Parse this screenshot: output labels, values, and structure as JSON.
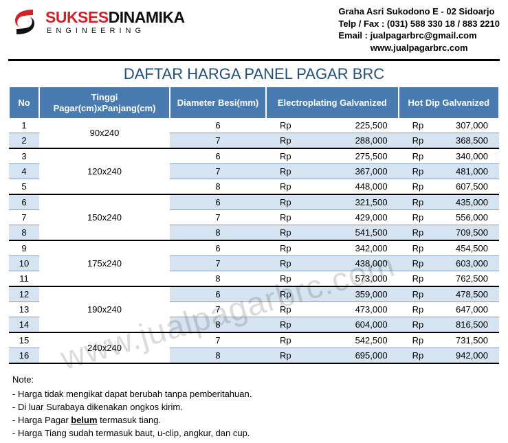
{
  "company": {
    "name_part1": "SUKSES",
    "name_part2": "DINAMIKA",
    "subtitle": "ENGINEERING"
  },
  "contact": {
    "address": "Graha Asri Sukodono E - 02 Sidoarjo",
    "phone": "Telp / Fax : (031) 588 330 18 / 883 2210",
    "email": "Email : jualpagarbrc@gmail.com",
    "web": "www.jualpagarbrc.com"
  },
  "title": "DAFTAR HARGA PANEL PAGAR BRC",
  "columns": {
    "no": "No",
    "size": "Tinggi Pagar(cm)xPanjang(cm)",
    "dia": "Diameter Besi(mm)",
    "electro": "Electroplating Galvanized",
    "hotdip": "Hot Dip Galvanized"
  },
  "currency": "Rp",
  "groups": [
    {
      "size": "90x240",
      "rows": [
        {
          "no": 1,
          "dia": 6,
          "e": "225,500",
          "h": "307,000"
        },
        {
          "no": 2,
          "dia": 7,
          "e": "288,000",
          "h": "368,500"
        }
      ]
    },
    {
      "size": "120x240",
      "rows": [
        {
          "no": 3,
          "dia": 6,
          "e": "275,500",
          "h": "340,000"
        },
        {
          "no": 4,
          "dia": 7,
          "e": "367,000",
          "h": "481,000"
        },
        {
          "no": 5,
          "dia": 8,
          "e": "448,000",
          "h": "607,500"
        }
      ]
    },
    {
      "size": "150x240",
      "rows": [
        {
          "no": 6,
          "dia": 6,
          "e": "321,500",
          "h": "435,000"
        },
        {
          "no": 7,
          "dia": 7,
          "e": "429,000",
          "h": "556,000"
        },
        {
          "no": 8,
          "dia": 8,
          "e": "541,500",
          "h": "709,500"
        }
      ]
    },
    {
      "size": "175x240",
      "rows": [
        {
          "no": 9,
          "dia": 6,
          "e": "342,000",
          "h": "454,500"
        },
        {
          "no": 10,
          "dia": 7,
          "e": "438,000",
          "h": "603,000"
        },
        {
          "no": 11,
          "dia": 8,
          "e": "573,000",
          "h": "762,500"
        }
      ]
    },
    {
      "size": "190x240",
      "rows": [
        {
          "no": 12,
          "dia": 6,
          "e": "359,000",
          "h": "478,500"
        },
        {
          "no": 13,
          "dia": 7,
          "e": "473,000",
          "h": "647,000"
        },
        {
          "no": 14,
          "dia": 8,
          "e": "604,000",
          "h": "816,500"
        }
      ]
    },
    {
      "size": "240x240",
      "rows": [
        {
          "no": 15,
          "dia": 7,
          "e": "542,500",
          "h": "731,500"
        },
        {
          "no": 16,
          "dia": 8,
          "e": "695,000",
          "h": "942,000"
        }
      ]
    }
  ],
  "notes": {
    "title": "Note:",
    "items": [
      "- Harga tidak mengikat dapat berubah tanpa pemberitahuan.",
      "- Di luar Surabaya dikenakan ongkos kirim.",
      "- Harga Pagar <u>belum</u> termasuk tiang.",
      "- Harga Tiang sudah termasuk baut, u-clip, angkur, dan cup."
    ]
  },
  "watermark": "www.jualpagarbrc.com",
  "colors": {
    "header_bg": "#4a7bb0",
    "alt_row": "#d6e3f0",
    "title": "#1f4e79",
    "brand_red": "#d42027"
  }
}
